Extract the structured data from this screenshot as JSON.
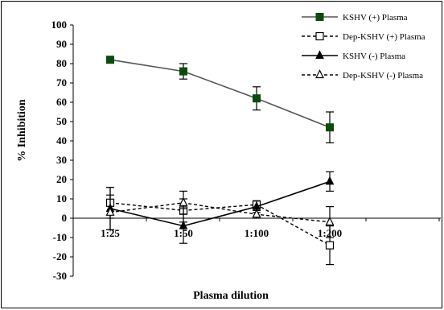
{
  "chart_data": {
    "type": "line",
    "title": "",
    "xlabel": "Plasma dilution",
    "ylabel": "% Inhibition",
    "categories": [
      "1:25",
      "1:50",
      "1:100",
      "1:200"
    ],
    "ylim": [
      -30,
      100
    ],
    "yticks": [
      -30,
      -20,
      -10,
      0,
      10,
      20,
      30,
      40,
      50,
      60,
      70,
      80,
      90,
      100
    ],
    "grid": false,
    "legend_position": "top-right",
    "series": [
      {
        "name": "KSHV (+) Plasma",
        "values": [
          82,
          76,
          62,
          47
        ],
        "errors": [
          1.5,
          4,
          6,
          8
        ],
        "color": "#555555",
        "marker": "filled-square",
        "marker_color": "#0d4a0d",
        "dash": "solid"
      },
      {
        "name": "Dep-KSHV (+) Plasma",
        "values": [
          8,
          4,
          7,
          -14
        ],
        "errors": [
          8,
          6,
          2,
          10
        ],
        "color": "#000000",
        "marker": "open-square",
        "marker_color": "#000000",
        "dash": "dashed"
      },
      {
        "name": "KSHV (-) Plasma",
        "values": [
          5,
          -4,
          6,
          19
        ],
        "errors": [
          11,
          9,
          3,
          5
        ],
        "color": "#000000",
        "marker": "filled-triangle",
        "marker_color": "#000000",
        "dash": "solid"
      },
      {
        "name": "Dep-KSHV (-) Plasma",
        "values": [
          3,
          8,
          2,
          -2
        ],
        "errors": [
          9,
          6,
          2,
          8
        ],
        "color": "#000000",
        "marker": "open-triangle",
        "marker_color": "#000000",
        "dash": "dashed"
      }
    ]
  }
}
